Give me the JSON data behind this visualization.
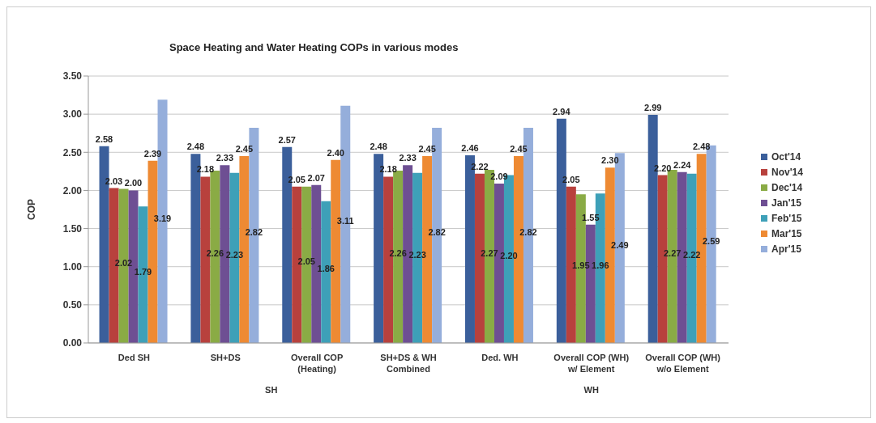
{
  "chart_data": {
    "type": "bar",
    "title": "Space Heating and Water Heating COPs in various modes",
    "ylabel": "COP",
    "categories": [
      "Ded SH",
      "SH+DS",
      "Overall COP (Heating)",
      "SH+DS & WH Combined",
      "Ded. WH",
      "Overall COP (WH) w/ Element",
      "Overall COP (WH) w/o Element"
    ],
    "annotations": [
      "SH",
      "WH"
    ],
    "ylim": [
      0,
      3.5
    ],
    "yticks": [
      {
        "value": 0,
        "label": "0.00"
      },
      {
        "value": 0.5,
        "label": "0.50"
      },
      {
        "value": 1,
        "label": "1.00"
      },
      {
        "value": 1.5,
        "label": "1.50"
      },
      {
        "value": 2,
        "label": "2.00"
      },
      {
        "value": 2.5,
        "label": "2.50"
      },
      {
        "value": 3,
        "label": "3.00"
      },
      {
        "value": 3.5,
        "label": "3.50"
      }
    ],
    "grid": "y",
    "legend": "right",
    "series": [
      {
        "name": "Oct'14",
        "color": "#3b5f9b",
        "values": [
          2.58,
          2.48,
          2.57,
          2.48,
          2.46,
          2.94,
          2.99
        ],
        "value_labels": [
          "2.58",
          "2.48",
          "2.57",
          "2.48",
          "2.46",
          "2.94",
          "2.99"
        ]
      },
      {
        "name": "Nov'14",
        "color": "#b8413d",
        "values": [
          2.03,
          2.18,
          2.05,
          2.18,
          2.22,
          2.05,
          2.2
        ],
        "value_labels": [
          "2.03",
          "2.18",
          "2.05",
          "2.18",
          "2.22",
          "2.05",
          "2.20"
        ]
      },
      {
        "name": "Dec'14",
        "color": "#8aab45",
        "values": [
          2.02,
          2.26,
          2.05,
          2.26,
          2.27,
          1.95,
          2.27
        ],
        "value_labels": [
          "2.02",
          "2.26",
          "2.05",
          "2.26",
          "2.27",
          "1.95",
          "2.27"
        ]
      },
      {
        "name": "Jan'15",
        "color": "#6e4f93",
        "values": [
          2.0,
          2.33,
          2.07,
          2.33,
          2.09,
          1.55,
          2.24
        ],
        "value_labels": [
          "2.00",
          "2.33",
          "2.07",
          "2.33",
          "2.09",
          "1.55",
          "2.24"
        ]
      },
      {
        "name": "Feb'15",
        "color": "#3ea0b8",
        "values": [
          1.79,
          2.23,
          1.86,
          2.23,
          2.2,
          1.96,
          2.22
        ],
        "value_labels": [
          "1.79",
          "2.23",
          "1.86",
          "2.23",
          "2.20",
          "1.96",
          "2.22"
        ]
      },
      {
        "name": "Mar'15",
        "color": "#ee8a33",
        "values": [
          2.39,
          2.45,
          2.4,
          2.45,
          2.45,
          2.3,
          2.48
        ],
        "value_labels": [
          "2.39",
          "2.45",
          "2.40",
          "2.45",
          "2.45",
          "2.30",
          "2.48"
        ]
      },
      {
        "name": "Apr'15",
        "color": "#95aedb",
        "values": [
          3.19,
          2.82,
          3.11,
          2.82,
          2.82,
          2.49,
          2.59
        ],
        "value_labels": [
          "3.19",
          "2.82",
          "3.11",
          "2.82",
          "2.82",
          "2.49",
          "2.59"
        ]
      }
    ]
  }
}
